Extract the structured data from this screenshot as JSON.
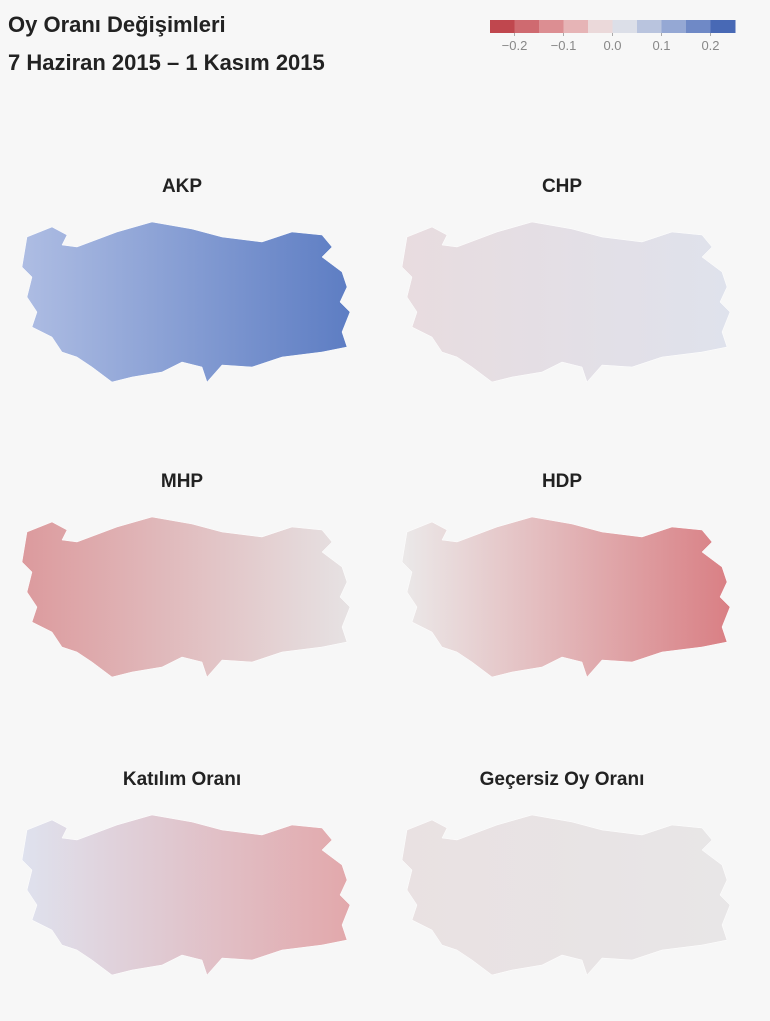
{
  "header": {
    "title": "Oy Oranı Değişimleri",
    "subtitle": "7 Haziran 2015 – 1 Kasım 2015"
  },
  "legend": {
    "colors": [
      "#c0474e",
      "#cf6a70",
      "#dc8e92",
      "#e6b4b6",
      "#ebd9da",
      "#dcdfe8",
      "#b9c4de",
      "#95a8d4",
      "#6f89c6",
      "#4869b5"
    ],
    "xlim": [
      -0.25,
      0.25
    ],
    "xticks": [
      {
        "value": -0.2,
        "label": "−0.2"
      },
      {
        "value": -0.1,
        "label": "−0.1"
      },
      {
        "value": 0,
        "label": "0.0"
      },
      0.1,
      0.2
    ]
  },
  "maps": [
    {
      "title": "AKP",
      "colors": [
        "#aebde3",
        "#5d7dc3"
      ]
    },
    {
      "title": "CHP",
      "colors": [
        "#e8dcdf",
        "#dfe2ec"
      ]
    },
    {
      "title": "MHP",
      "colors": [
        "#dc9a9d",
        "#e6e2e3"
      ]
    },
    {
      "title": "HDP",
      "colors": [
        "#ebe9e9",
        "#d97f84"
      ]
    },
    {
      "title": "Katılım Oranı",
      "colors": [
        "#dfe2ee",
        "#e2a8ab"
      ]
    },
    {
      "title": "Geçersiz Oy Oranı",
      "colors": [
        "#e9e1e2",
        "#e8e6e7"
      ]
    }
  ]
}
